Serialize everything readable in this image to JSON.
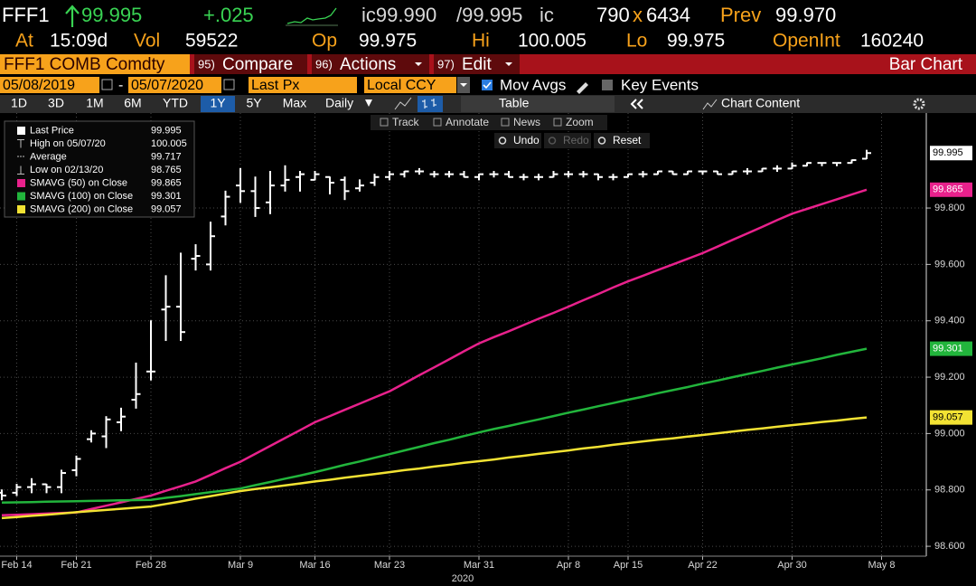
{
  "quote": {
    "ticker": "FFF1",
    "last": "99.995",
    "change": "+.025",
    "bid_label": "ic99.990",
    "ask_label": "/99.995",
    "ask_suffix": "ic",
    "bid_size": "790",
    "size_sep": "x",
    "ask_size": "6434",
    "prev_label": "Prev",
    "prev": "99.970",
    "at_label": "At",
    "time": "15:09d",
    "vol_label": "Vol",
    "volume": "59522",
    "open_label": "Op",
    "open": "99.975",
    "high_label": "Hi",
    "high": "100.005",
    "low_label": "Lo",
    "low": "99.975",
    "oi_label": "OpenInt",
    "open_interest": "160240"
  },
  "toolbar": {
    "security": "FFF1 COMB Comdty",
    "buttons": [
      {
        "number": "95)",
        "label": "Compare"
      },
      {
        "number": "96)",
        "label": "Actions"
      },
      {
        "number": "97)",
        "label": "Edit"
      }
    ],
    "view": "Bar Chart"
  },
  "controls": {
    "start_date": "05/08/2019",
    "date_sep": "-",
    "end_date": "05/07/2020",
    "field": "Last Px",
    "currency": "Local CCY",
    "mov_avgs": "Mov Avgs",
    "key_events": "Key Events"
  },
  "ranges": {
    "periods": [
      "1D",
      "3D",
      "1M",
      "6M",
      "YTD",
      "1Y",
      "5Y",
      "Max"
    ],
    "selected": 5,
    "frequency": "Daily",
    "table": "Table",
    "chart_content": "Chart Content"
  },
  "chart_tools": {
    "top": [
      "Track",
      "Annotate",
      "News",
      "Zoom"
    ],
    "bottom": [
      "Undo",
      "Redo",
      "Reset"
    ]
  },
  "chart_data": {
    "type": "ohlc",
    "xlabel": "2020",
    "grid": true,
    "categories": [
      null,
      "Feb 14",
      null,
      null,
      null,
      "Feb 21",
      null,
      null,
      null,
      null,
      "Feb 28",
      null,
      null,
      null,
      null,
      null,
      "Mar 9",
      null,
      null,
      null,
      null,
      "Mar 16",
      null,
      null,
      null,
      null,
      "Mar 23",
      null,
      null,
      null,
      null,
      null,
      "Mar 31",
      null,
      null,
      null,
      null,
      null,
      "Apr 8",
      null,
      null,
      null,
      "Apr 15",
      null,
      null,
      null,
      null,
      "Apr 22",
      null,
      null,
      null,
      null,
      null,
      "Apr 30",
      null,
      null,
      null,
      null,
      null,
      "May 8"
    ],
    "ylim": [
      98.565,
      100.137
    ],
    "yticks": [
      {
        "value": 98.6,
        "label": "98.600"
      },
      {
        "value": 98.8,
        "label": "98.800"
      },
      {
        "value": 99.0,
        "label": "99.000"
      },
      {
        "value": 99.2,
        "label": "99.200"
      },
      {
        "value": 99.4,
        "label": "99.400"
      },
      {
        "value": 99.6,
        "label": "99.600"
      },
      {
        "value": 99.8,
        "label": "99.800"
      }
    ],
    "stats": [
      {
        "label": "High on 05/07/20",
        "value": 100.005
      },
      {
        "label": "Average",
        "value": 99.717
      },
      {
        "label": "Low on 02/13/20",
        "value": 98.765
      }
    ],
    "series": [
      {
        "name": "Last Price",
        "color": "#ffffff",
        "open": [
          98.79,
          98.79,
          98.81,
          98.82,
          98.81,
          98.87,
          98.98,
          98.99,
          99.04,
          99.12,
          99.22,
          99.44,
          99.45,
          99.62,
          99.6,
          99.77,
          99.88,
          99.86,
          99.82,
          99.88,
          99.91,
          99.9,
          99.91,
          99.9,
          99.87,
          99.89,
          99.91,
          99.92,
          99.93,
          99.92,
          99.92,
          99.92,
          99.91,
          99.92,
          99.92,
          99.91,
          99.91,
          99.91,
          99.92,
          99.92,
          99.92,
          99.91,
          99.91,
          99.92,
          99.92,
          99.93,
          99.92,
          99.93,
          99.93,
          99.92,
          99.93,
          99.93,
          99.94,
          99.94,
          99.95,
          99.96,
          99.96,
          99.96,
          99.975,
          null
        ],
        "high": [
          98.8,
          98.82,
          98.84,
          98.82,
          98.87,
          98.92,
          99.01,
          99.06,
          99.09,
          99.25,
          99.4,
          99.56,
          99.64,
          99.67,
          99.75,
          99.86,
          99.94,
          99.91,
          99.93,
          99.95,
          99.93,
          99.93,
          99.91,
          99.91,
          99.9,
          99.92,
          99.93,
          99.93,
          99.94,
          99.93,
          99.93,
          99.93,
          99.92,
          99.93,
          99.93,
          99.92,
          99.92,
          99.93,
          99.93,
          99.93,
          99.92,
          99.92,
          99.92,
          99.93,
          99.93,
          99.93,
          99.93,
          99.93,
          99.93,
          99.93,
          99.94,
          99.94,
          99.95,
          99.96,
          99.96,
          99.96,
          99.96,
          99.97,
          100.005,
          null
        ],
        "low": [
          98.765,
          98.78,
          98.79,
          98.79,
          98.79,
          98.85,
          98.97,
          98.95,
          99.01,
          99.09,
          99.19,
          99.33,
          99.33,
          99.58,
          99.58,
          99.74,
          99.82,
          99.77,
          99.78,
          99.86,
          99.86,
          99.9,
          99.85,
          99.83,
          99.86,
          99.88,
          99.9,
          99.91,
          99.92,
          99.91,
          99.91,
          99.91,
          99.9,
          99.91,
          99.91,
          99.9,
          99.9,
          99.91,
          99.91,
          99.91,
          99.9,
          99.9,
          99.91,
          99.91,
          99.92,
          99.92,
          99.92,
          99.92,
          99.92,
          99.92,
          99.92,
          99.93,
          99.93,
          99.94,
          99.95,
          99.95,
          99.95,
          99.96,
          99.975,
          null
        ],
        "close": [
          98.78,
          98.81,
          98.82,
          98.81,
          98.86,
          98.91,
          99.0,
          99.05,
          99.06,
          99.14,
          99.22,
          99.45,
          99.36,
          99.63,
          99.7,
          99.84,
          99.86,
          99.8,
          99.88,
          99.9,
          99.92,
          99.92,
          99.89,
          99.86,
          99.88,
          99.91,
          99.92,
          99.93,
          99.93,
          99.92,
          99.92,
          99.91,
          99.92,
          99.92,
          99.91,
          99.91,
          99.91,
          99.92,
          99.92,
          99.92,
          99.91,
          99.91,
          99.92,
          99.92,
          99.93,
          99.92,
          99.93,
          99.93,
          99.92,
          99.93,
          99.93,
          99.94,
          99.94,
          99.95,
          99.96,
          99.96,
          99.96,
          99.97,
          99.995,
          null
        ]
      },
      {
        "name": "SMAVG (50)  on Close",
        "type": "line",
        "color": "#e8218c",
        "tag_text": "#ffffff",
        "values": [
          98.71,
          98.712,
          98.714,
          98.716,
          98.718,
          98.72,
          98.732,
          98.744,
          98.756,
          98.768,
          98.78,
          98.797,
          98.813,
          98.83,
          98.853,
          98.877,
          98.9,
          98.928,
          98.956,
          98.984,
          99.012,
          99.04,
          99.062,
          99.084,
          99.106,
          99.128,
          99.15,
          99.178,
          99.207,
          99.235,
          99.263,
          99.292,
          99.32,
          99.342,
          99.363,
          99.385,
          99.407,
          99.428,
          99.45,
          99.473,
          99.495,
          99.518,
          99.54,
          99.56,
          99.58,
          99.6,
          99.62,
          99.64,
          99.663,
          99.687,
          99.71,
          99.733,
          99.757,
          99.78,
          99.797,
          99.814,
          99.831,
          99.848,
          99.865,
          null
        ]
      },
      {
        "name": "SMAVG (100)  on Close",
        "type": "line",
        "color": "#22b53c",
        "tag_text": "#ffffff",
        "values": [
          98.755,
          98.756,
          98.757,
          98.758,
          98.759,
          98.76,
          98.761,
          98.762,
          98.763,
          98.764,
          98.765,
          98.772,
          98.778,
          98.785,
          98.792,
          98.798,
          98.805,
          98.817,
          98.828,
          98.84,
          98.851,
          98.863,
          98.876,
          98.889,
          98.901,
          98.914,
          98.927,
          98.94,
          98.953,
          98.966,
          98.978,
          98.991,
          99.004,
          99.016,
          99.027,
          99.039,
          99.05,
          99.062,
          99.074,
          99.085,
          99.097,
          99.108,
          99.12,
          99.131,
          99.143,
          99.154,
          99.165,
          99.177,
          99.188,
          99.2,
          99.211,
          99.222,
          99.234,
          99.245,
          99.256,
          99.267,
          99.279,
          99.29,
          99.301,
          null
        ]
      },
      {
        "name": "SMAVG (200)  on Close",
        "type": "line",
        "color": "#f2e233",
        "tag_text": "#000000",
        "values": [
          98.7,
          98.704,
          98.708,
          98.712,
          98.716,
          98.721,
          98.725,
          98.729,
          98.733,
          98.737,
          98.741,
          98.75,
          98.759,
          98.769,
          98.778,
          98.787,
          98.796,
          98.803,
          98.809,
          98.816,
          98.823,
          98.83,
          98.836,
          98.843,
          98.85,
          98.856,
          98.863,
          98.87,
          98.876,
          98.883,
          98.889,
          98.896,
          98.902,
          98.908,
          98.915,
          98.921,
          98.928,
          98.934,
          98.94,
          98.947,
          98.953,
          98.96,
          98.966,
          98.972,
          98.978,
          98.983,
          98.989,
          98.995,
          99.001,
          99.007,
          99.013,
          99.018,
          99.024,
          99.03,
          99.035,
          99.041,
          99.046,
          99.052,
          99.057,
          null
        ]
      }
    ]
  }
}
